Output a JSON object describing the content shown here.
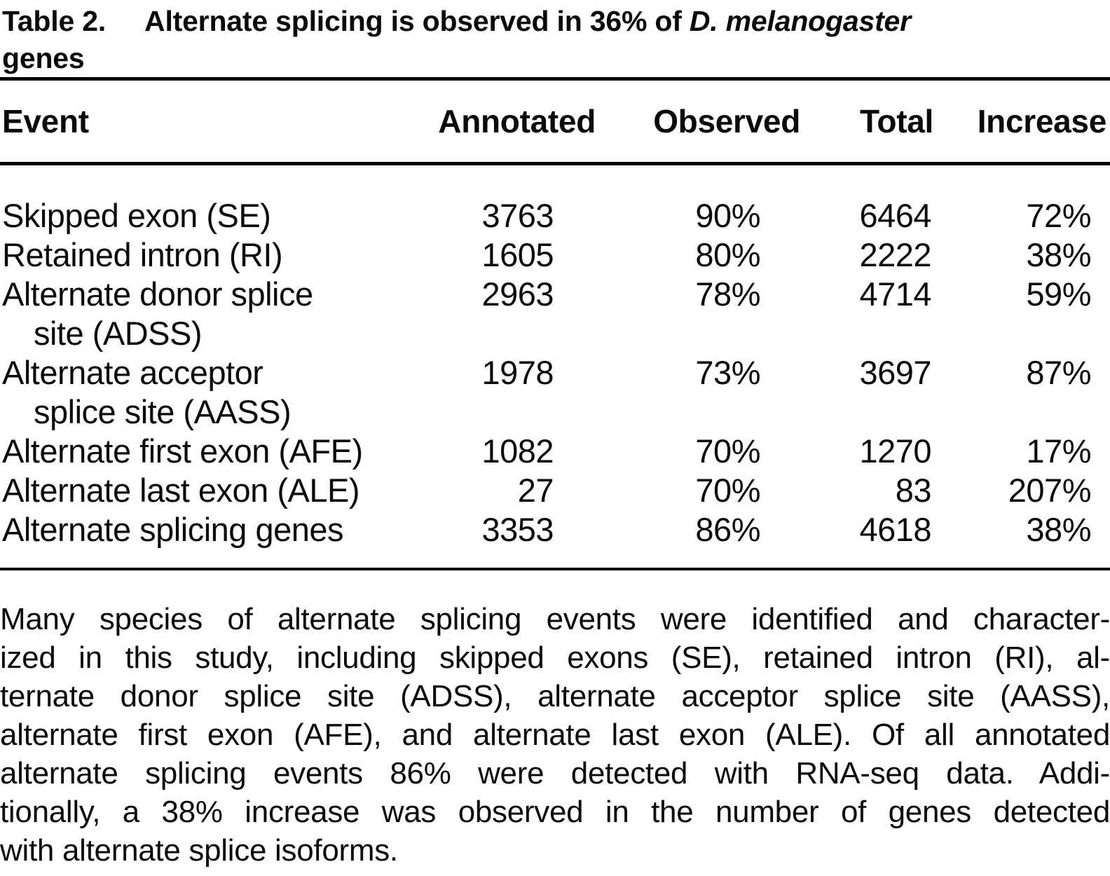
{
  "page": {
    "background_color": "#ffffff",
    "text_color": "#0a0a0a",
    "rule_color": "#000000"
  },
  "title": {
    "label": "Table 2.",
    "text": "Alternate splicing is observed in 36% of",
    "species_italic": "D. melanogaster",
    "line2": "genes"
  },
  "table": {
    "headers": {
      "event": "Event",
      "annotated": "Annotated",
      "observed": "Observed",
      "total": "Total",
      "increase": "Increase"
    },
    "rows": [
      {
        "event": "Skipped exon (SE)",
        "event2": "",
        "annotated": "3763",
        "observed": "90%",
        "total": "6464",
        "increase": "72%"
      },
      {
        "event": "Retained intron (RI)",
        "event2": "",
        "annotated": "1605",
        "observed": "80%",
        "total": "2222",
        "increase": "38%"
      },
      {
        "event": "Alternate donor splice",
        "event2": "site (ADSS)",
        "annotated": "2963",
        "observed": "78%",
        "total": "4714",
        "increase": "59%"
      },
      {
        "event": "Alternate acceptor",
        "event2": "splice site (AASS)",
        "annotated": "1978",
        "observed": "73%",
        "total": "3697",
        "increase": "87%"
      },
      {
        "event": "Alternate first exon (AFE)",
        "event2": "",
        "annotated": "1082",
        "observed": "70%",
        "total": "1270",
        "increase": "17%"
      },
      {
        "event": "Alternate last exon (ALE)",
        "event2": "",
        "annotated": "27",
        "observed": "70%",
        "total": "83",
        "increase": "207%"
      },
      {
        "event": "Alternate splicing genes",
        "event2": "",
        "annotated": "3353",
        "observed": "86%",
        "total": "4618",
        "increase": "38%"
      }
    ]
  },
  "footnote": {
    "lines": [
      "Many species of alternate splicing events were identified and character-",
      "ized in this study, including skipped exons (SE), retained intron (RI), al-",
      "ternate donor splice site (ADSS), alternate acceptor splice site (AASS),",
      "alternate first exon (AFE), and alternate last exon (ALE). Of all annotated",
      "alternate splicing events 86% were detected with RNA-seq data. Addi-",
      "tionally, a 38% increase was observed in the number of genes detected",
      "with alternate splice isoforms."
    ]
  }
}
